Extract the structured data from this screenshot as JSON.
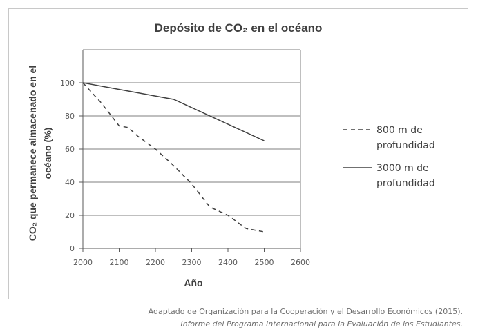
{
  "chart_data": {
    "type": "line",
    "title": "Depósito de CO₂ en el océano",
    "xlabel": "Año",
    "ylabel_line1": "CO₂ que permanece almacenado en el",
    "ylabel_line2": "océano (%)",
    "xlim": [
      2000,
      2600
    ],
    "ylim": [
      0,
      120
    ],
    "x_ticks": [
      2000,
      2100,
      2200,
      2300,
      2400,
      2500,
      2600
    ],
    "y_ticks": [
      0,
      20,
      40,
      60,
      80,
      100
    ],
    "grid": true,
    "legend_position": "right",
    "series": [
      {
        "name_line1": "800 m de",
        "name_line2": "profundidad",
        "style": "dashed",
        "color": "#404040",
        "points": [
          [
            2000,
            100
          ],
          [
            2050,
            88
          ],
          [
            2100,
            74
          ],
          [
            2125,
            73
          ],
          [
            2150,
            68
          ],
          [
            2200,
            60
          ],
          [
            2250,
            50
          ],
          [
            2300,
            39
          ],
          [
            2350,
            25
          ],
          [
            2400,
            20
          ],
          [
            2450,
            12
          ],
          [
            2500,
            10
          ]
        ]
      },
      {
        "name_line1": "3000 m de",
        "name_line2": "profundidad",
        "style": "solid",
        "color": "#404040",
        "points": [
          [
            2000,
            100
          ],
          [
            2250,
            90
          ],
          [
            2500,
            65
          ]
        ]
      }
    ]
  },
  "source": {
    "line1": "Adaptado de Organización para la Cooperación y el Desarrollo Económicos (2015).",
    "line2": "Informe del Programa Internacional para la Evaluación de los Estudiantes."
  }
}
